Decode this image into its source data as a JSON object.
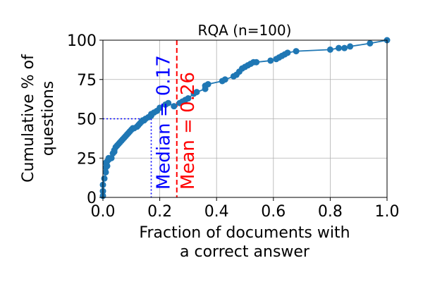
{
  "chart_data": {
    "type": "line",
    "title": "RQA (n=100)",
    "xlabel_line1": "Fraction of documents with",
    "xlabel_line2": "a correct answer",
    "ylabel_line1": "Cumulative % of",
    "ylabel_line2": "questions",
    "xlim": [
      0,
      1
    ],
    "ylim": [
      0,
      100
    ],
    "xticks": [
      0.0,
      0.2,
      0.4,
      0.6,
      0.8,
      1.0
    ],
    "xtick_labels": [
      "0.0",
      "0.2",
      "0.4",
      "0.6",
      "0.8",
      "1.0"
    ],
    "yticks": [
      0,
      25,
      50,
      75,
      100
    ],
    "ytick_labels": [
      "0",
      "25",
      "50",
      "75",
      "100"
    ],
    "grid": true,
    "series": [
      {
        "color": "#1f77b4",
        "x": [
          0.0,
          0.0,
          0.0,
          0.005,
          0.01,
          0.01,
          0.01,
          0.015,
          0.015,
          0.02,
          0.02,
          0.03,
          0.035,
          0.04,
          0.04,
          0.045,
          0.05,
          0.055,
          0.06,
          0.065,
          0.07,
          0.075,
          0.08,
          0.085,
          0.09,
          0.095,
          0.1,
          0.105,
          0.11,
          0.12,
          0.125,
          0.13,
          0.135,
          0.14,
          0.145,
          0.15,
          0.16,
          0.17,
          0.17,
          0.18,
          0.19,
          0.2,
          0.22,
          0.23,
          0.25,
          0.27,
          0.28,
          0.29,
          0.3,
          0.32,
          0.33,
          0.36,
          0.36,
          0.37,
          0.42,
          0.43,
          0.46,
          0.47,
          0.48,
          0.49,
          0.5,
          0.51,
          0.52,
          0.53,
          0.54,
          0.59,
          0.61,
          0.62,
          0.63,
          0.64,
          0.65,
          0.68,
          0.8,
          0.83,
          0.85,
          0.87,
          0.94,
          1.0
        ],
        "y": [
          1,
          4,
          8,
          12,
          16,
          19,
          22,
          20,
          23,
          24,
          25,
          25,
          28,
          29,
          30,
          32,
          33,
          34,
          35,
          36,
          37,
          38,
          39,
          40,
          41,
          42,
          43,
          44,
          44,
          45,
          46,
          47,
          48,
          49,
          49,
          50,
          51,
          52,
          53,
          54,
          55,
          57,
          59,
          60,
          58,
          60,
          61,
          62,
          63,
          66,
          67,
          69,
          71,
          72,
          74,
          75,
          77,
          78,
          80,
          82,
          83,
          84,
          85,
          86,
          86,
          87,
          88,
          89,
          90,
          91,
          92,
          93,
          94,
          95,
          95,
          96,
          98,
          100
        ]
      }
    ],
    "median": {
      "value": 0.17,
      "label": "Median = 0.17",
      "color": "#0000ff"
    },
    "mean": {
      "value": 0.26,
      "label": "Mean = 0.26",
      "color": "#ff0000"
    }
  }
}
